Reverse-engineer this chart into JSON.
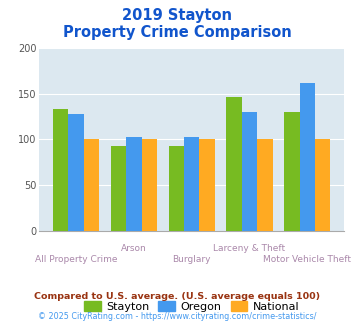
{
  "title_line1": "2019 Stayton",
  "title_line2": "Property Crime Comparison",
  "categories": [
    "All Property Crime",
    "Arson",
    "Burglary",
    "Larceny & Theft",
    "Motor Vehicle Theft"
  ],
  "series": {
    "Stayton": [
      133,
      93,
      93,
      146,
      130
    ],
    "Oregon": [
      128,
      103,
      103,
      130,
      162
    ],
    "National": [
      100,
      100,
      100,
      100,
      100
    ]
  },
  "colors": {
    "Stayton": "#77bb22",
    "Oregon": "#4499ee",
    "National": "#ffaa22"
  },
  "ylim": [
    0,
    200
  ],
  "yticks": [
    0,
    50,
    100,
    150,
    200
  ],
  "plot_bg": "#dce8f0",
  "fig_bg": "#ffffff",
  "title_color": "#1155cc",
  "xlabel_color": "#aa88aa",
  "footnote1": "Compared to U.S. average. (U.S. average equals 100)",
  "footnote2": "© 2025 CityRating.com - https://www.cityrating.com/crime-statistics/",
  "footnote1_color": "#993311",
  "footnote2_color": "#4499ee"
}
